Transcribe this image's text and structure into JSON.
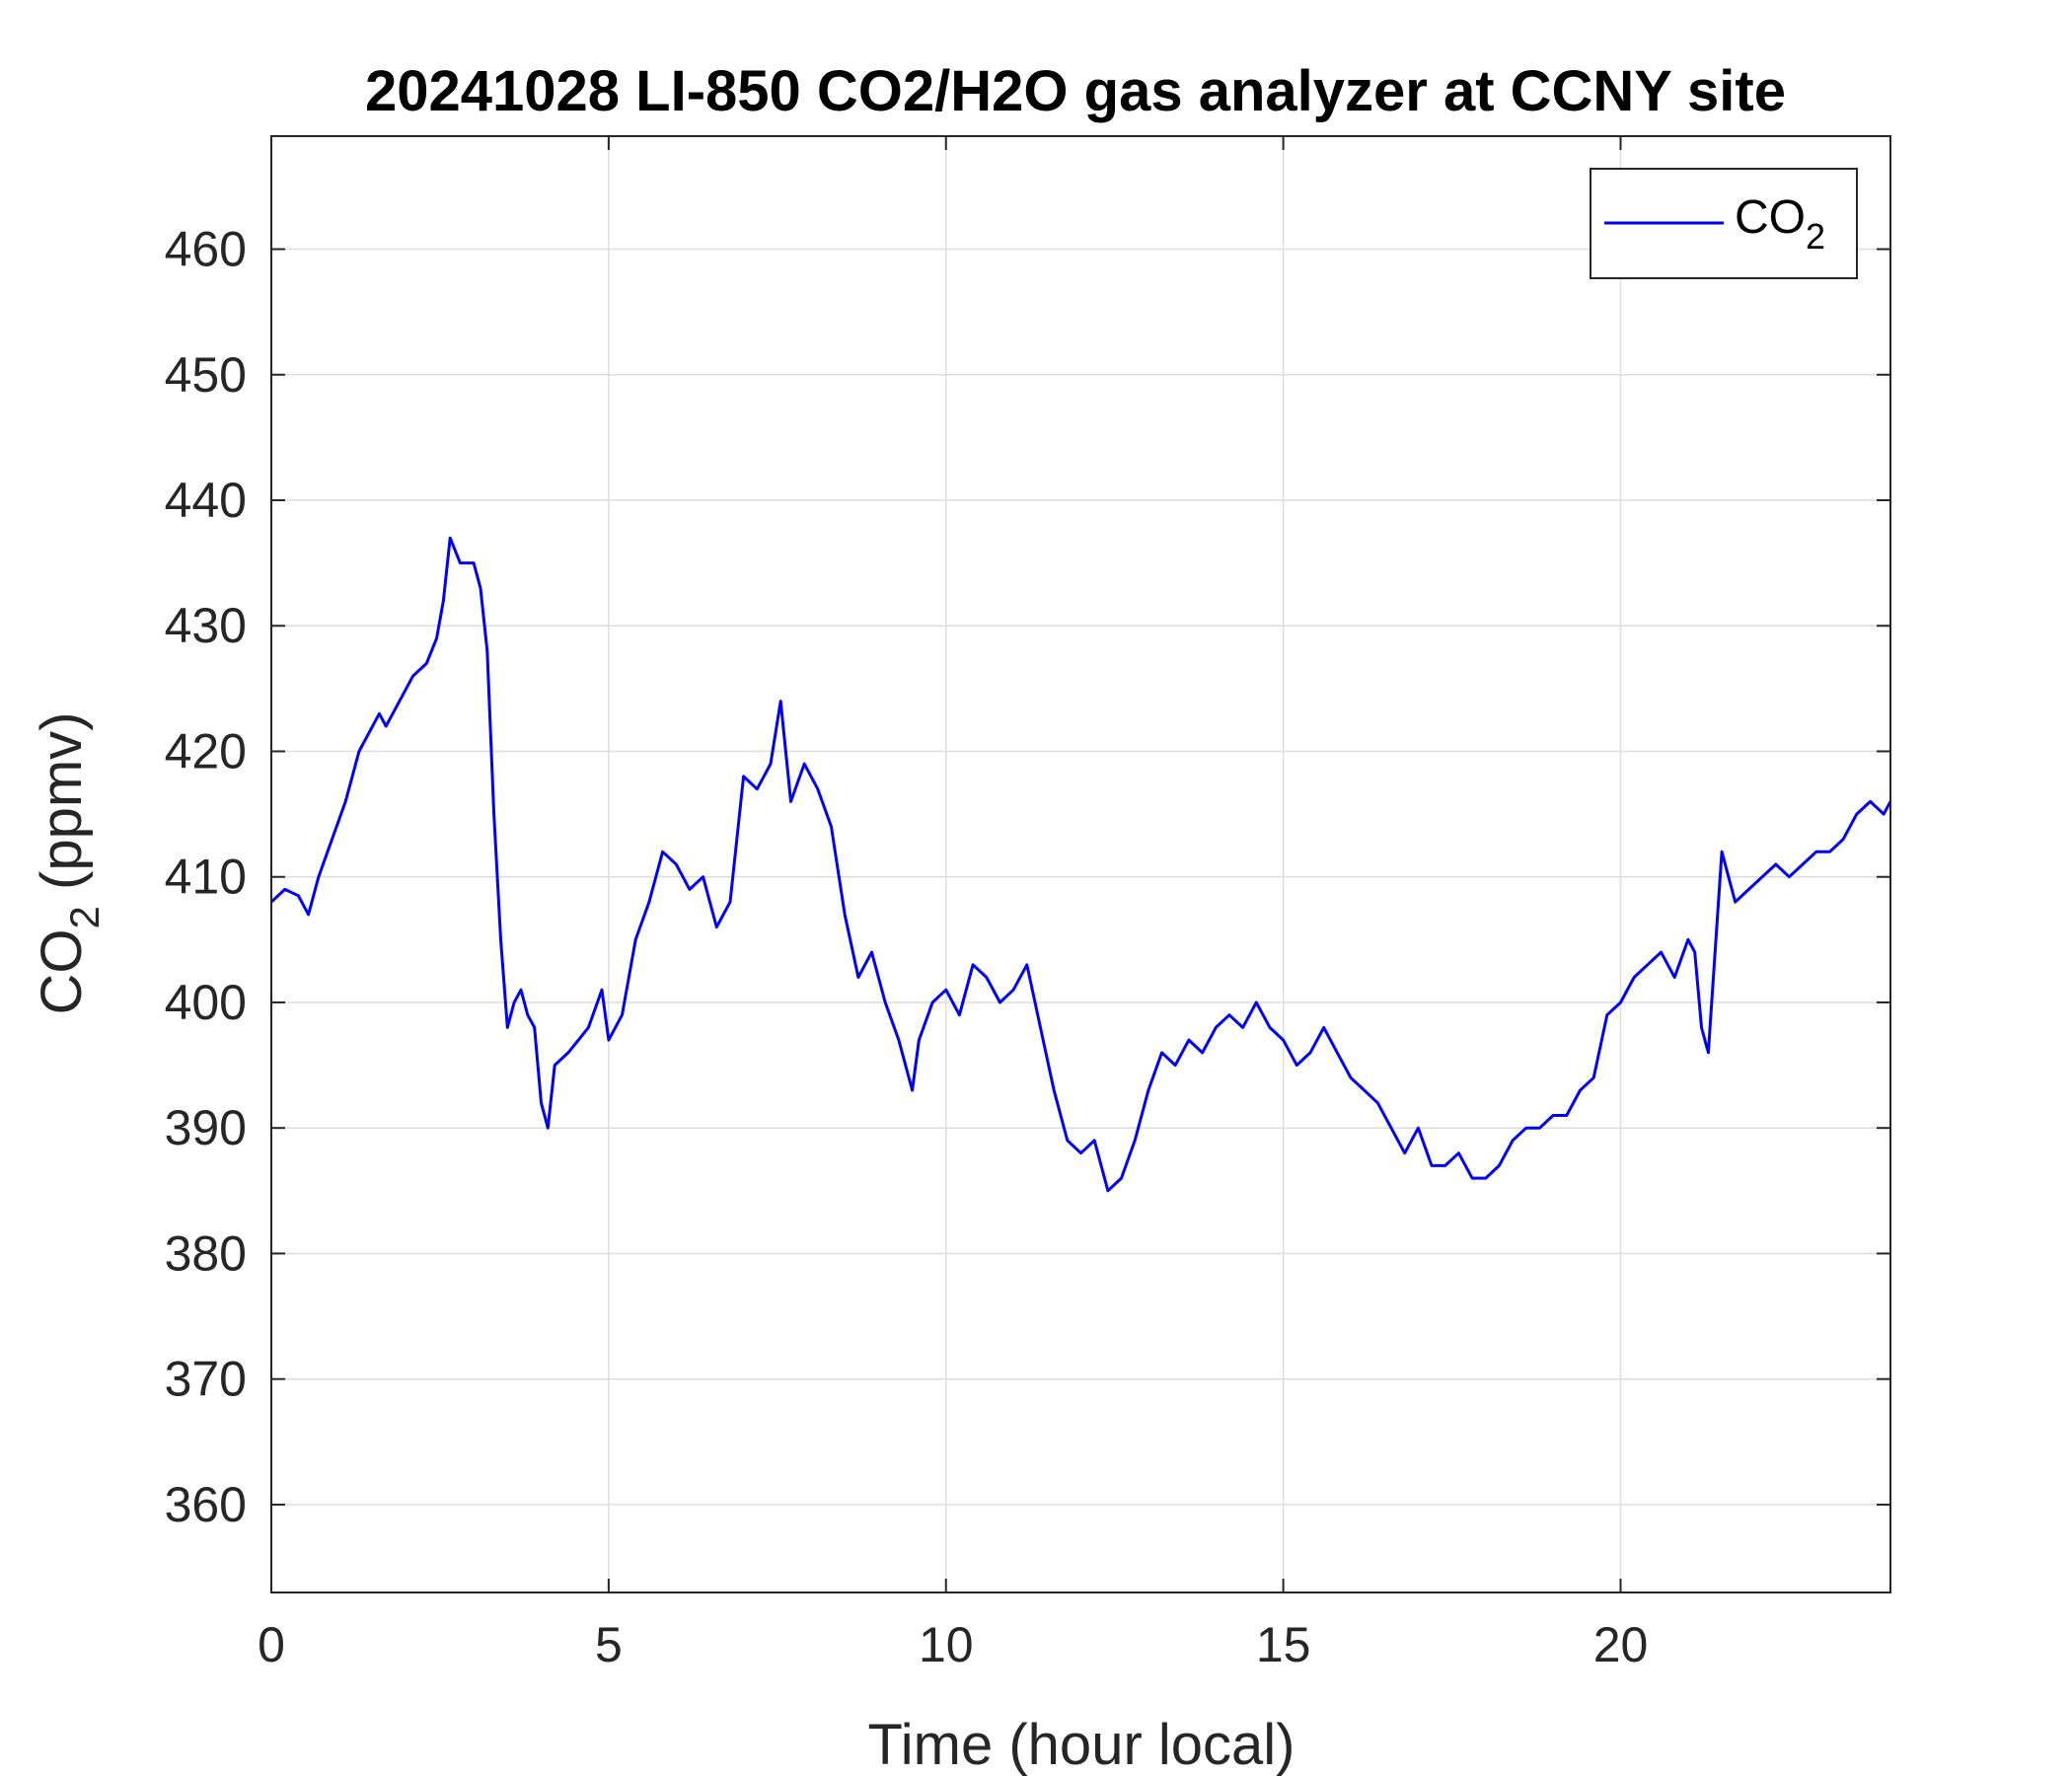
{
  "chart_data": {
    "type": "line",
    "title": "20241028 LI-850 CO2/H2O gas analyzer at CCNY site",
    "xlabel": "Time (hour local)",
    "ylabel": {
      "main": "CO",
      "sub": "2",
      "suffix": " (ppmv)"
    },
    "xlim": [
      0,
      24
    ],
    "ylim": [
      353,
      469
    ],
    "xticks": [
      0,
      5,
      10,
      15,
      20
    ],
    "yticks": [
      360,
      370,
      380,
      390,
      400,
      410,
      420,
      430,
      440,
      450,
      460
    ],
    "grid": true,
    "legend_position": "top-right",
    "series": [
      {
        "name": {
          "main": "CO",
          "sub": "2"
        },
        "color": "#0000ff",
        "x": [
          0,
          0.2,
          0.4,
          0.55,
          0.7,
          0.9,
          1.1,
          1.3,
          1.5,
          1.6,
          1.7,
          1.9,
          2.1,
          2.3,
          2.45,
          2.55,
          2.65,
          2.8,
          3.0,
          3.1,
          3.2,
          3.3,
          3.4,
          3.5,
          3.6,
          3.7,
          3.8,
          3.9,
          4.0,
          4.1,
          4.2,
          4.4,
          4.7,
          4.9,
          5.0,
          5.2,
          5.4,
          5.6,
          5.8,
          6.0,
          6.2,
          6.4,
          6.6,
          6.8,
          7.0,
          7.2,
          7.4,
          7.55,
          7.7,
          7.9,
          8.1,
          8.3,
          8.5,
          8.7,
          8.9,
          9.1,
          9.3,
          9.5,
          9.6,
          9.8,
          10.0,
          10.2,
          10.4,
          10.6,
          10.8,
          11.0,
          11.2,
          11.4,
          11.6,
          11.8,
          12.0,
          12.2,
          12.4,
          12.6,
          12.8,
          13.0,
          13.2,
          13.4,
          13.6,
          13.8,
          14.0,
          14.2,
          14.4,
          14.6,
          14.8,
          15.0,
          15.2,
          15.4,
          15.6,
          15.8,
          16.0,
          16.2,
          16.4,
          16.6,
          16.8,
          17.0,
          17.2,
          17.4,
          17.6,
          17.8,
          18.0,
          18.2,
          18.4,
          18.6,
          18.8,
          19.0,
          19.2,
          19.4,
          19.6,
          19.8,
          20.0,
          20.2,
          20.4,
          20.6,
          20.8,
          21.0,
          21.1,
          21.2,
          21.3,
          21.5,
          21.7,
          21.9,
          22.1,
          22.3,
          22.5,
          22.7,
          22.9,
          23.1,
          23.3,
          23.5,
          23.7,
          23.9,
          24.0
        ],
        "y": [
          408,
          409,
          408.5,
          407,
          410,
          413,
          416,
          420,
          422,
          423,
          422,
          424,
          426,
          427,
          429,
          432,
          437,
          435,
          435,
          433,
          428,
          415,
          405,
          398,
          400,
          401,
          399,
          398,
          392,
          390,
          395,
          396,
          398,
          401,
          397,
          399,
          405,
          408,
          412,
          411,
          409,
          410,
          406,
          408,
          418,
          417,
          419,
          424,
          416,
          419,
          417,
          414,
          407,
          402,
          404,
          400,
          397,
          393,
          397,
          400,
          401,
          399,
          403,
          402,
          400,
          401,
          403,
          398,
          393,
          389,
          388,
          389,
          385,
          386,
          389,
          393,
          396,
          395,
          397,
          396,
          398,
          399,
          398,
          400,
          398,
          397,
          395,
          396,
          398,
          396,
          394,
          393,
          392,
          390,
          388,
          390,
          387,
          387,
          388,
          386,
          386,
          387,
          389,
          390,
          390,
          391,
          391,
          393,
          394,
          399,
          400,
          402,
          403,
          404,
          402,
          405,
          404,
          398,
          396,
          412,
          408,
          409,
          410,
          411,
          410,
          411,
          412,
          412,
          413,
          415,
          416,
          415,
          416
        ]
      }
    ]
  }
}
